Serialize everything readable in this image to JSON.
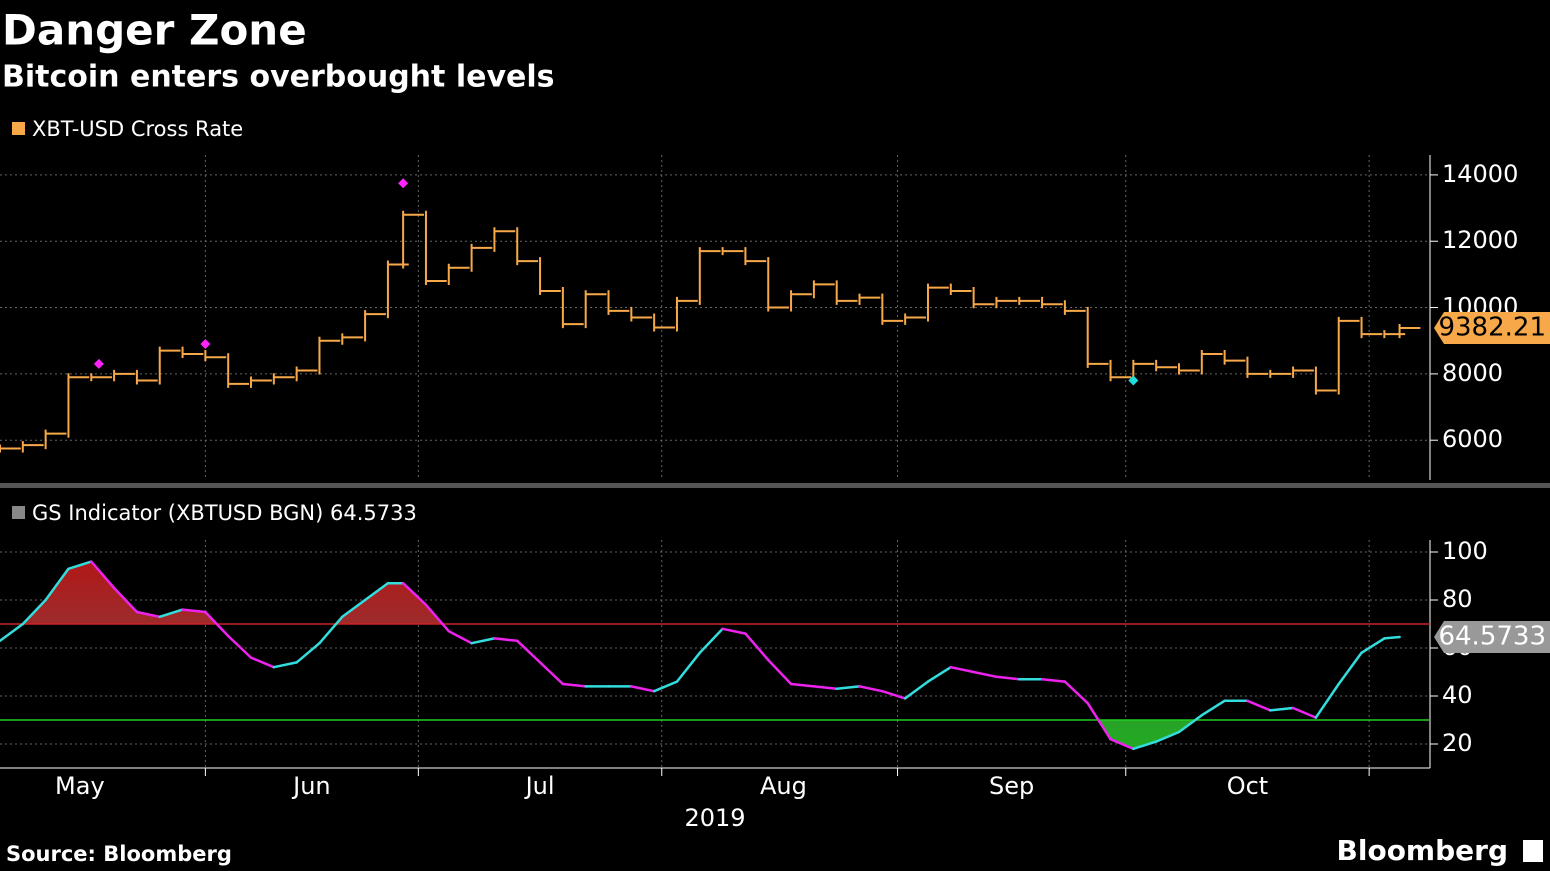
{
  "chart_data": [
    {
      "type": "stock",
      "title": "Danger Zone",
      "subtitle": "Bitcoin enters overbought levels",
      "source": "Source: Bloomberg",
      "brand": "Bloomberg",
      "x_axis_label": "2019",
      "series": [
        {
          "name": "XBT-USD Cross Rate",
          "color": "#f7a94a",
          "x": [
            0,
            3,
            6,
            9,
            12,
            15,
            18,
            21,
            24,
            27,
            30,
            33,
            36,
            39,
            42,
            45,
            48,
            51,
            53,
            56,
            59,
            62,
            65,
            68,
            71,
            74,
            77,
            80,
            83,
            86,
            89,
            92,
            95,
            98,
            101,
            104,
            107,
            110,
            113,
            116,
            119,
            122,
            125,
            128,
            131,
            134,
            137,
            140,
            143,
            146,
            149,
            152,
            155,
            158,
            161,
            164,
            167,
            170,
            173,
            176,
            179,
            182,
            184
          ],
          "values": [
            5750,
            5850,
            6200,
            7900,
            7900,
            8000,
            7800,
            8700,
            8600,
            8500,
            7700,
            7800,
            7900,
            8100,
            9000,
            9100,
            9800,
            11300,
            12800,
            10800,
            11200,
            11800,
            12300,
            11400,
            10500,
            9500,
            10400,
            9900,
            9700,
            9400,
            10200,
            11700,
            11700,
            11400,
            10000,
            10400,
            10700,
            10200,
            10300,
            9600,
            9700,
            10600,
            10500,
            10100,
            10200,
            10200,
            10100,
            9900,
            8300,
            7900,
            8300,
            8200,
            8100,
            8600,
            8400,
            8000,
            8000,
            8100,
            7500,
            9600,
            9200,
            9200,
            9382.21
          ]
        }
      ],
      "signals": [
        {
          "color": "#ff22ff",
          "x": [
            13,
            27,
            53
          ],
          "values": [
            8300,
            8900,
            13750
          ]
        },
        {
          "color": "#22dddd",
          "x": [
            149
          ],
          "values": [
            7800
          ]
        }
      ],
      "last_label": "9382.21",
      "xlim": [
        0,
        188
      ],
      "ylim": [
        4800,
        14600
      ],
      "yticks": [
        6000,
        8000,
        10000,
        12000,
        14000
      ],
      "xgrid": [
        27,
        55,
        87,
        118,
        148,
        180
      ],
      "xticks": [
        {
          "value": 10.5,
          "label": "May"
        },
        {
          "value": 41,
          "label": "Jun"
        },
        {
          "value": 71,
          "label": "Jul"
        },
        {
          "value": 103,
          "label": "Aug"
        },
        {
          "value": 133,
          "label": "Sep"
        },
        {
          "value": 164,
          "label": "Oct"
        }
      ],
      "grid": true
    },
    {
      "type": "line",
      "series": [
        {
          "name": "GS Indicator (XBTUSD BGN) 64.5733",
          "color": "#888888",
          "up_color": "#33dddd",
          "down_color": "#ee22ee",
          "x": [
            0,
            3,
            6,
            9,
            12,
            15,
            18,
            21,
            24,
            27,
            30,
            33,
            36,
            39,
            42,
            45,
            48,
            51,
            53,
            56,
            59,
            62,
            65,
            68,
            71,
            74,
            77,
            80,
            83,
            86,
            89,
            92,
            95,
            98,
            101,
            104,
            107,
            110,
            113,
            116,
            119,
            122,
            125,
            128,
            131,
            134,
            137,
            140,
            143,
            146,
            149,
            152,
            155,
            158,
            161,
            164,
            167,
            170,
            173,
            176,
            179,
            182,
            184
          ],
          "values": [
            63,
            70,
            80,
            93,
            96,
            85,
            75,
            73,
            76,
            75,
            65,
            56,
            52,
            54,
            62,
            73,
            80,
            87,
            87,
            78,
            67,
            62,
            64,
            63,
            54,
            45,
            44,
            44,
            44,
            42,
            46,
            58,
            68,
            66,
            55,
            45,
            44,
            43,
            44,
            42,
            39,
            46,
            52,
            50,
            48,
            47,
            47,
            46,
            37,
            22,
            18,
            21,
            25,
            32,
            38,
            38,
            34,
            35,
            31,
            45,
            58,
            64,
            64.5733
          ]
        }
      ],
      "last_label": "64.5733",
      "upper_band": {
        "value": 70,
        "color": "#cc2222"
      },
      "lower_band": {
        "value": 30,
        "color": "#22cc22"
      },
      "xlim": [
        0,
        188
      ],
      "ylim": [
        10,
        105
      ],
      "yticks": [
        20,
        40,
        60,
        80,
        100
      ],
      "xgrid": [
        27,
        55,
        87,
        118,
        148,
        180
      ],
      "grid": true
    }
  ]
}
